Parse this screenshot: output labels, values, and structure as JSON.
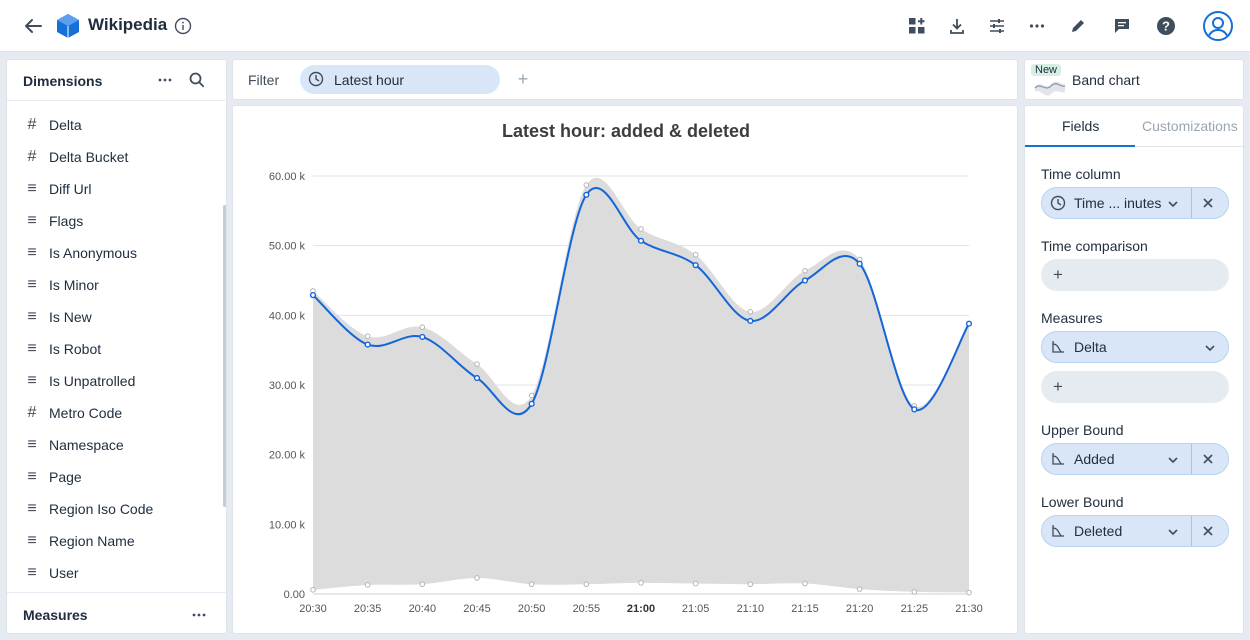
{
  "app": {
    "title": "Wikipedia"
  },
  "icons": {
    "back": "arrow-left-icon",
    "logo": "cube-logo-icon",
    "info": "info-icon",
    "toolbar": [
      "add-widget-icon",
      "download-icon",
      "settings-sliders-icon",
      "more-icon",
      "edit-icon",
      "comment-icon",
      "help-icon",
      "user-avatar-icon"
    ]
  },
  "colors": {
    "accent": "#1570d8",
    "pill_bg": "#d8e6f7",
    "band_fill": "#dcdcdc",
    "line": "#1565d8"
  },
  "dimensions": {
    "label": "Dimensions",
    "items": [
      {
        "name": "Delta",
        "icon": "#"
      },
      {
        "name": "Delta Bucket",
        "icon": "#"
      },
      {
        "name": "Diff Url",
        "icon": "≡"
      },
      {
        "name": "Flags",
        "icon": "≡"
      },
      {
        "name": "Is Anonymous",
        "icon": "≡"
      },
      {
        "name": "Is Minor",
        "icon": "≡"
      },
      {
        "name": "Is New",
        "icon": "≡"
      },
      {
        "name": "Is Robot",
        "icon": "≡"
      },
      {
        "name": "Is Unpatrolled",
        "icon": "≡"
      },
      {
        "name": "Metro Code",
        "icon": "#"
      },
      {
        "name": "Namespace",
        "icon": "≡"
      },
      {
        "name": "Page",
        "icon": "≡"
      },
      {
        "name": "Region Iso Code",
        "icon": "≡"
      },
      {
        "name": "Region Name",
        "icon": "≡"
      },
      {
        "name": "User",
        "icon": "≡"
      }
    ]
  },
  "measures": {
    "label": "Measures"
  },
  "filter": {
    "label": "Filter",
    "pill": "Latest hour",
    "add": "+"
  },
  "viz": {
    "badge": "New",
    "name": "Band chart"
  },
  "tabs": {
    "fields": "Fields",
    "customizations": "Customizations"
  },
  "fields": {
    "time_column": {
      "label": "Time column",
      "value": "Time ... inutes"
    },
    "time_comparison": {
      "label": "Time comparison"
    },
    "measures": {
      "label": "Measures",
      "value": "Delta"
    },
    "upper_bound": {
      "label": "Upper Bound",
      "value": "Added"
    },
    "lower_bound": {
      "label": "Lower Bound",
      "value": "Deleted"
    },
    "add": "+"
  },
  "chart_data": {
    "type": "area",
    "title": "Latest hour: added & deleted",
    "x": [
      "20:30",
      "20:35",
      "20:40",
      "20:45",
      "20:50",
      "20:55",
      "21:00",
      "21:05",
      "21:10",
      "21:15",
      "21:20",
      "21:25",
      "21:30"
    ],
    "bold_tick": "21:00",
    "y_ticks": [
      "0.00",
      "10.00 k",
      "20.00 k",
      "30.00 k",
      "40.00 k",
      "50.00 k",
      "60.00 k"
    ],
    "ylim": [
      0,
      60000
    ],
    "grid": true,
    "series": [
      {
        "name": "Added",
        "role": "upper",
        "values": [
          43500,
          37000,
          38300,
          33000,
          28500,
          58700,
          52400,
          48700,
          40500,
          46400,
          48000,
          27000,
          38800
        ]
      },
      {
        "name": "Delta",
        "role": "line",
        "values": [
          42900,
          35800,
          36900,
          31000,
          27300,
          57300,
          50700,
          47200,
          39200,
          45000,
          47400,
          26500,
          38800
        ]
      },
      {
        "name": "Deleted",
        "role": "lower",
        "values": [
          600,
          1300,
          1400,
          2300,
          1400,
          1400,
          1600,
          1500,
          1400,
          1500,
          700,
          300,
          200
        ]
      }
    ]
  }
}
